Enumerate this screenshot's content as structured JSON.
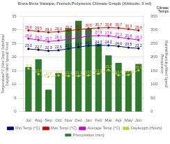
{
  "chart_data": {
    "type": "bar",
    "title": "Bora-Bora Vataipe, French Polynesia Climate Graph (Altitude: 3 ml)",
    "categories": [
      "Jul",
      "Aug",
      "Sep",
      "Oct",
      "Nov",
      "Dec",
      "Jan",
      "Feb",
      "Mar",
      "Apr",
      "May",
      "Jun"
    ],
    "y_label": "Temperature/°C (Wet Days/ Sunshine/ Daylight/ Wind Speed/ Frost)",
    "y2_label": "Rainfall/Humidity/Wind Speed/\nPrecipitation",
    "annotation": "Climate\nTemps",
    "series": [
      {
        "name": "Precipitation (mm)",
        "type": "bar",
        "axis": "y2",
        "color": "#2d7a2d",
        "values": [
          163.2,
          192.1,
          80.8,
          141.7,
          306.3,
          333.4,
          304.4,
          248.4,
          206.4,
          179.1,
          147.9,
          175.3
        ]
      },
      {
        "name": "Min Temp (°C)",
        "type": "line",
        "color": "#00008b",
        "marker": "circle",
        "line_style": "solid",
        "data_labels": true,
        "values": [
          23.0,
          22.7,
          22.3,
          22.5,
          23.1,
          23.7,
          24.2,
          24.3,
          24.3,
          24.0,
          23.5,
          23.2
        ],
        "value_labels": [
          "23.0",
          "22.7",
          "22.3",
          "22.5",
          "23.1",
          "23.7",
          "24.2",
          "24.3",
          "24.3",
          "24.0",
          "23.5",
          "23.2"
        ]
      },
      {
        "name": "Max Temp (°C)",
        "type": "line",
        "color": "#cc0000",
        "marker": "circle",
        "line_style": "solid",
        "data_labels": true,
        "values": [
          29.8,
          29.5,
          29.1,
          29.3,
          29.7,
          30.1,
          30.5,
          30.7,
          30.8,
          30.7,
          30.3,
          29.8
        ]
      },
      {
        "name": "Average Temp (°C)",
        "type": "line",
        "color": "#cc00cc",
        "marker": "circle",
        "line_style": "solid",
        "data_labels": true,
        "values": [
          26.8,
          26.3,
          25.7,
          26.1,
          26.5,
          27.1,
          27.7,
          27.9,
          27.8,
          27.3,
          26.8,
          26.3
        ]
      },
      {
        "name": "Daylength (Hours)",
        "type": "line",
        "color": "#cccc44",
        "marker": "circle",
        "line_style": "dashed",
        "data_labels": true,
        "values": [
          15.8,
          13.8,
          12.8,
          13.3,
          13.1,
          13.1,
          13.3,
          13.9,
          15.3,
          13.4,
          13.5,
          15.2
        ]
      }
    ],
    "ylim": [
      0,
      35
    ],
    "yticks": [
      0,
      5,
      10,
      15,
      20,
      25,
      30,
      35
    ],
    "y2lim": [
      0,
      350
    ],
    "y2ticks": [
      0,
      50,
      100,
      150,
      200,
      250,
      300,
      350
    ],
    "grid": true,
    "legend": "bottom"
  }
}
